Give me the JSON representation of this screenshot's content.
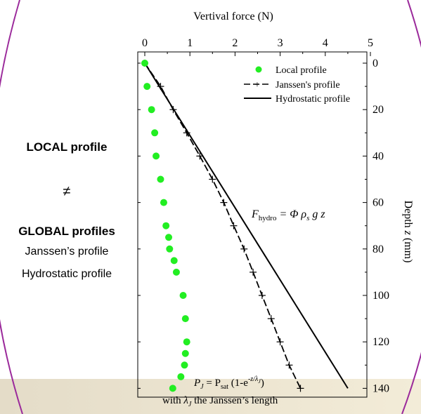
{
  "side_panel": {
    "local_title": "LOCAL profile",
    "not_equal": "≠",
    "global_title": "GLOBAL profiles",
    "item_janssen": "Janssen’s profile",
    "item_hydrostatic": "Hydrostatic profile"
  },
  "colors": {
    "frame": "#9b2a9b",
    "local_points": "#22ee22",
    "lines": "#000000"
  },
  "chart_data": {
    "type": "scatter",
    "xlabel": "Vertival force (N)",
    "ylabel": "Depth z (mm)",
    "xlim": [
      0,
      5
    ],
    "ylim": [
      0,
      140
    ],
    "y_inverted": true,
    "x_axis_position": "top",
    "y_axis_position": "right",
    "x_ticks": [
      0,
      1,
      2,
      3,
      4,
      5
    ],
    "y_ticks": [
      0,
      20,
      40,
      60,
      80,
      100,
      120,
      140
    ],
    "grid": false,
    "legend_position": "top-right",
    "series": [
      {
        "name": "Local profile",
        "style": "green-dots",
        "points": [
          [
            0.0,
            0
          ],
          [
            0.05,
            10
          ],
          [
            0.15,
            20
          ],
          [
            0.22,
            30
          ],
          [
            0.25,
            40
          ],
          [
            0.35,
            50
          ],
          [
            0.42,
            60
          ],
          [
            0.47,
            70
          ],
          [
            0.53,
            75
          ],
          [
            0.55,
            80
          ],
          [
            0.65,
            85
          ],
          [
            0.7,
            90
          ],
          [
            0.85,
            100
          ],
          [
            0.9,
            110
          ],
          [
            0.93,
            120
          ],
          [
            0.9,
            125
          ],
          [
            0.88,
            130
          ],
          [
            0.8,
            135
          ],
          [
            0.62,
            140
          ]
        ]
      },
      {
        "name": "Janssen's profile",
        "style": "dashed-plus",
        "points": [
          [
            0.0,
            0
          ],
          [
            0.35,
            10
          ],
          [
            0.63,
            20
          ],
          [
            0.93,
            30
          ],
          [
            1.22,
            40
          ],
          [
            1.5,
            50
          ],
          [
            1.75,
            60
          ],
          [
            1.97,
            70
          ],
          [
            2.2,
            80
          ],
          [
            2.4,
            90
          ],
          [
            2.6,
            100
          ],
          [
            2.8,
            110
          ],
          [
            3.0,
            120
          ],
          [
            3.2,
            130
          ],
          [
            3.45,
            140
          ]
        ]
      },
      {
        "name": "Hydrostatic profile",
        "style": "solid",
        "points": [
          [
            0.0,
            0
          ],
          [
            4.5,
            140
          ]
        ]
      }
    ],
    "annotations": {
      "hydro_formula": {
        "F": "F",
        "hydro_sub": "hydro",
        "rest": " = Φ ρ",
        "s_sub": "s",
        "tail": " g z"
      },
      "janssen_formula": {
        "P": "P",
        "J_sub": "J",
        "eq": " = P",
        "sat_sub": "sat",
        "paren": " (1-e",
        "exp": "-z/λ",
        "exp_sub": "J",
        "close": ")"
      },
      "janssen_note": {
        "prefix": "with ",
        "lambda": "λ",
        "J_sub": "J",
        "suffix": " the Janssen’s length"
      }
    }
  }
}
